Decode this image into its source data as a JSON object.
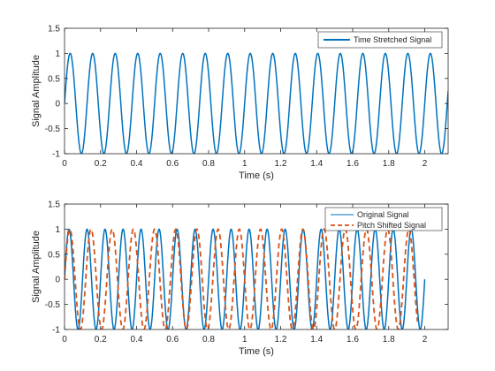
{
  "chart_data": [
    {
      "type": "line",
      "xlabel": "Time (s)",
      "ylabel": "Signal Amplitude",
      "xlim": [
        0,
        2.13
      ],
      "ylim": [
        -1,
        1.5
      ],
      "xticks": [
        0,
        0.2,
        0.4,
        0.6,
        0.8,
        1,
        1.2,
        1.4,
        1.6,
        1.8,
        2
      ],
      "xtick_labels": [
        "0",
        "0.2",
        "0.4",
        "0.6",
        "0.8",
        "1",
        "1.2",
        "1.4",
        "1.6",
        "1.8",
        "2"
      ],
      "yticks": [
        -1,
        -0.5,
        0,
        0.5,
        1,
        1.5
      ],
      "ytick_labels": [
        "-1",
        "-0.5",
        "0",
        "0.5",
        "1",
        "1.5"
      ],
      "grid": false,
      "legend_position": "top-right",
      "series": [
        {
          "name": "Time Stretched Signal",
          "function": "sin",
          "amplitude": 1,
          "frequency_hz": 8,
          "x_start": 0,
          "x_end": 2.13,
          "color": "#0072BD",
          "line_style": "solid"
        }
      ]
    },
    {
      "type": "line",
      "xlabel": "Time (s)",
      "ylabel": "Signal Amplitude",
      "xlim": [
        0,
        2.13
      ],
      "ylim": [
        -1,
        1.5
      ],
      "xticks": [
        0,
        0.2,
        0.4,
        0.6,
        0.8,
        1,
        1.2,
        1.4,
        1.6,
        1.8,
        2
      ],
      "xtick_labels": [
        "0",
        "0.2",
        "0.4",
        "0.6",
        "0.8",
        "1",
        "1.2",
        "1.4",
        "1.6",
        "1.8",
        "2"
      ],
      "yticks": [
        -1,
        -0.5,
        0,
        0.5,
        1,
        1.5
      ],
      "ytick_labels": [
        "-1",
        "-0.5",
        "0",
        "0.5",
        "1",
        "1.5"
      ],
      "grid": false,
      "legend_position": "top-right",
      "series": [
        {
          "name": "Original Signal",
          "function": "sin",
          "amplitude": 1,
          "frequency_hz": 10,
          "x_start": 0,
          "x_end": 2,
          "color": "#0072BD",
          "line_style": "solid"
        },
        {
          "name": "Pitch Shifted Signal",
          "function": "sin",
          "amplitude": 1,
          "frequency_hz": 8.5,
          "x_start": 0,
          "x_end": 1.96,
          "color": "#D95319",
          "line_style": "dashed"
        }
      ]
    }
  ]
}
